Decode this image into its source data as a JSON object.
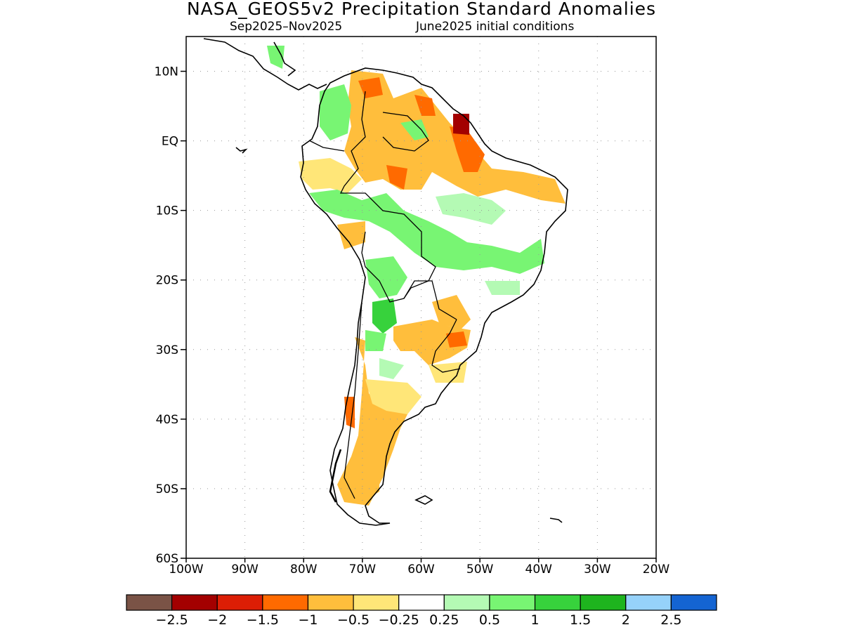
{
  "title": "NASA_GEOS5v2 Precipitation Standard Anomalies",
  "subtitle_left": "Sep2025–Nov2025",
  "subtitle_right": "June2025 initial conditions",
  "map": {
    "region": "South America",
    "lon_range": [
      -100,
      -20
    ],
    "lat_range": [
      -60,
      15
    ],
    "y_tick_labels": [
      "10N",
      "EQ",
      "10S",
      "20S",
      "30S",
      "40S",
      "50S",
      "60S"
    ],
    "x_tick_labels": [
      "100W",
      "90W",
      "80W",
      "70W",
      "60W",
      "50W",
      "40W",
      "30W",
      "20W"
    ],
    "grid": "dotted"
  },
  "colorbar": {
    "labels": [
      "−2.5",
      "−2",
      "−1.5",
      "−1",
      "−0.5",
      "−0.25",
      "0.25",
      "0.5",
      "1",
      "1.5",
      "2",
      "2.5"
    ],
    "colors": [
      "#7a5346",
      "#a30000",
      "#dc1e05",
      "#ff6a00",
      "#ffbe3c",
      "#ffe678",
      "#ffffff",
      "#b4fab4",
      "#78f573",
      "#37d23c",
      "#1eb41e",
      "#96d2fa",
      "#1464d2"
    ]
  }
}
